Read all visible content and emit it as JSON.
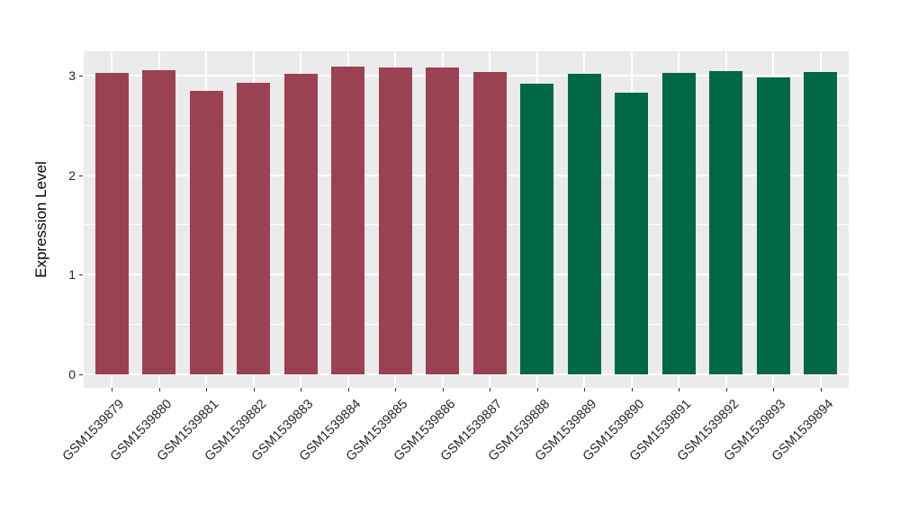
{
  "chart_data": {
    "type": "bar",
    "title": "",
    "xlabel": "",
    "ylabel": "Expression Level",
    "categories": [
      "GSM1539879",
      "GSM1539880",
      "GSM1539881",
      "GSM1539882",
      "GSM1539883",
      "GSM1539884",
      "GSM1539885",
      "GSM1539886",
      "GSM1539887",
      "GSM1539888",
      "GSM1539889",
      "GSM1539890",
      "GSM1539891",
      "GSM1539892",
      "GSM1539893",
      "GSM1539894"
    ],
    "values": [
      3.03,
      3.06,
      2.85,
      2.93,
      3.02,
      3.09,
      3.08,
      3.08,
      3.04,
      2.92,
      3.02,
      2.83,
      3.03,
      3.05,
      2.98,
      3.04
    ],
    "bar_colors": [
      "#9B4252",
      "#9B4252",
      "#9B4252",
      "#9B4252",
      "#9B4252",
      "#9B4252",
      "#9B4252",
      "#9B4252",
      "#9B4252",
      "#006847",
      "#006847",
      "#006847",
      "#006847",
      "#006847",
      "#006847",
      "#006847"
    ],
    "group_colors": {
      "maroon_group": "#9B4252",
      "green_group": "#006847"
    },
    "yticks": [
      0,
      1,
      2,
      3
    ],
    "y_minor_gridlines": [
      0.5,
      1.5,
      2.5
    ],
    "ylim": [
      -0.155,
      3.245
    ],
    "bar_width_fraction": 0.7,
    "x_label_angle_degrees": 45,
    "legend": "none",
    "grid": "white major+minor horizontal, white major vertical on gray panel",
    "panel_background": "#EBEBEB",
    "gridline_color": "#FFFFFF",
    "tick_color": "#333333",
    "axis_text_color": "#262626",
    "axis_title_color": "#000000"
  }
}
